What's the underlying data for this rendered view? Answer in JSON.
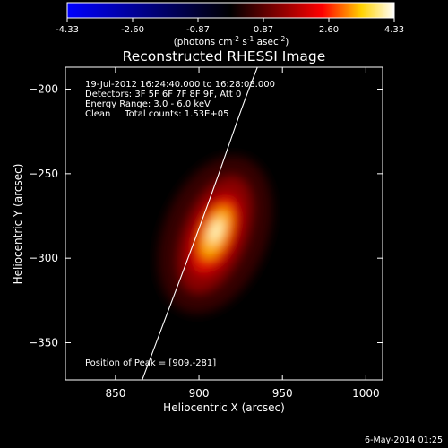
{
  "chart_data": {
    "type": "heatmap",
    "title": "Reconstructed RHESSI Image",
    "xlabel": "Heliocentric X (arcsec)",
    "ylabel": "Heliocentric Y (arcsec)",
    "xlim": [
      820,
      1010
    ],
    "ylim": [
      -372,
      -187
    ],
    "xticks": [
      850,
      900,
      950,
      1000
    ],
    "yticks": [
      -200,
      -250,
      -300,
      -350
    ],
    "grid": false,
    "colorbar": {
      "placement": "top",
      "colormap": "black-blue-red-yellow-white",
      "colors": [
        "#0000ff",
        "#000000",
        "#ff0000",
        "#ffd200",
        "#ffffff"
      ],
      "range": [
        -4.33,
        4.33
      ],
      "tick_labels": [
        "-4.33",
        "-2.60",
        "-0.87",
        "0.87",
        "2.60",
        "4.33"
      ],
      "unit_parts": [
        "(photons cm",
        "-2",
        " s",
        "-1",
        " asec",
        "-2",
        ")"
      ]
    },
    "annotations": [
      "19-Jul-2012 16:24:40.000 to 16:28:08.000",
      "Detectors: 3F 5F 6F 7F 8F 9F, Att 0",
      "Energy Range: 3.0 - 6.0 keV",
      "Clean     Total counts: 1.53E+05"
    ],
    "peak": {
      "label": "Position of Peak = [909,-281]",
      "x": 909,
      "y": -281
    },
    "limb_curve": [
      [
        866,
        -372
      ],
      [
        882,
        -330
      ],
      [
        898,
        -288
      ],
      [
        912,
        -250
      ],
      [
        926,
        -210
      ],
      [
        935,
        -187
      ]
    ],
    "timestamp": "6-May-2014 01:25"
  }
}
